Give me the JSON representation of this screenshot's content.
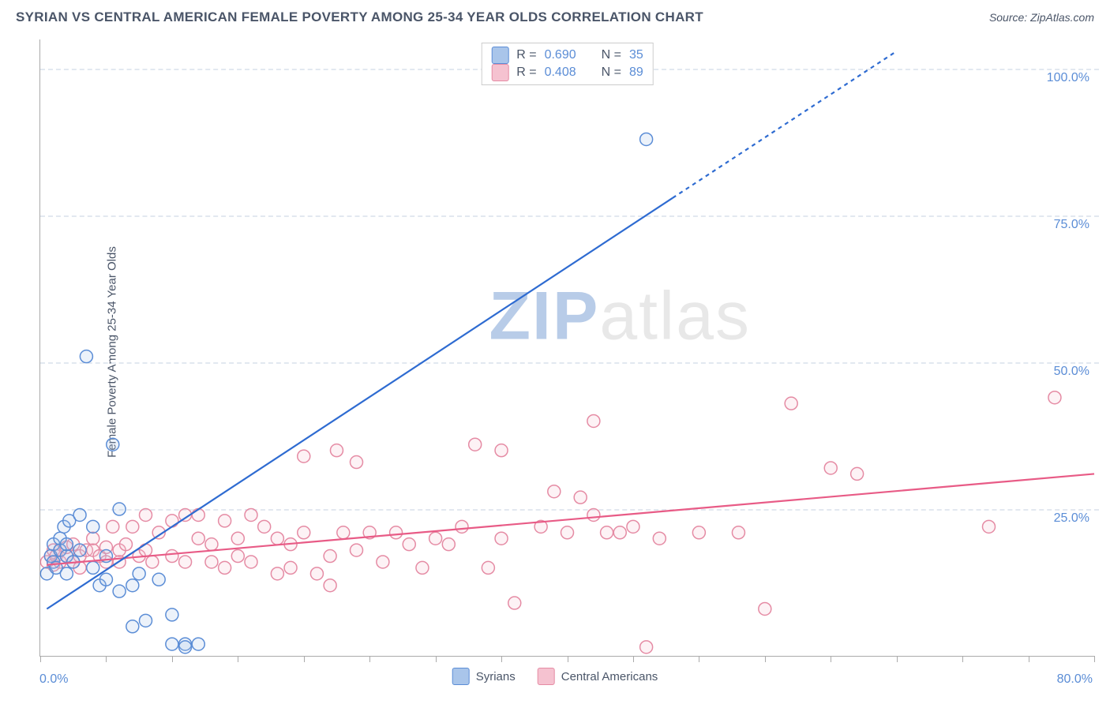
{
  "title": "SYRIAN VS CENTRAL AMERICAN FEMALE POVERTY AMONG 25-34 YEAR OLDS CORRELATION CHART",
  "source": "Source: ZipAtlas.com",
  "ylabel": "Female Poverty Among 25-34 Year Olds",
  "watermark_z": "ZIP",
  "watermark_rest": "atlas",
  "chart": {
    "type": "scatter",
    "xlim": [
      0,
      80
    ],
    "ylim": [
      0,
      105
    ],
    "x_ticklabels": [
      "0.0%",
      "80.0%"
    ],
    "y_ticks": [
      25,
      50,
      75,
      100
    ],
    "y_ticklabels": [
      "25.0%",
      "50.0%",
      "75.0%",
      "100.0%"
    ],
    "x_minor_tick_step": 5,
    "background_color": "#ffffff",
    "grid_color": "#e2e8f0",
    "axis_color": "#aaaaaa",
    "label_color_axis": "#5b8dd6",
    "label_color_text": "#4a5568",
    "marker_radius": 8,
    "marker_stroke_width": 1.5,
    "marker_fill_opacity": 0.22,
    "line_width": 2.2,
    "dash_pattern": "5,5"
  },
  "series": {
    "syrians": {
      "label": "Syrians",
      "color_stroke": "#5b8dd6",
      "color_fill": "#a9c5ea",
      "line_color": "#2e6bd1",
      "R": "0.690",
      "N": "35",
      "trend": {
        "x1": 0.5,
        "y1": 8,
        "x2": 48,
        "y2": 78,
        "ext_x2": 65,
        "ext_y2": 103
      },
      "points": [
        [
          0.5,
          14
        ],
        [
          0.8,
          17
        ],
        [
          1,
          16
        ],
        [
          1,
          19
        ],
        [
          1.2,
          15
        ],
        [
          1.5,
          18
        ],
        [
          1.5,
          20
        ],
        [
          1.8,
          22
        ],
        [
          2,
          17
        ],
        [
          2,
          14
        ],
        [
          2,
          19
        ],
        [
          2.2,
          23
        ],
        [
          2.5,
          16
        ],
        [
          3,
          18
        ],
        [
          3,
          24
        ],
        [
          3.5,
          51
        ],
        [
          4,
          15
        ],
        [
          4,
          22
        ],
        [
          4.5,
          12
        ],
        [
          5,
          17
        ],
        [
          5,
          13
        ],
        [
          5.5,
          36
        ],
        [
          6,
          11
        ],
        [
          6,
          25
        ],
        [
          7,
          12
        ],
        [
          7,
          5
        ],
        [
          7.5,
          14
        ],
        [
          8,
          6
        ],
        [
          9,
          13
        ],
        [
          10,
          7
        ],
        [
          10,
          2
        ],
        [
          11,
          2
        ],
        [
          11,
          1.5
        ],
        [
          12,
          2
        ],
        [
          46,
          88
        ]
      ]
    },
    "central_americans": {
      "label": "Central Americans",
      "color_stroke": "#e58ba4",
      "color_fill": "#f5c2d0",
      "line_color": "#e85b86",
      "R": "0.408",
      "N": "89",
      "trend": {
        "x1": 0.5,
        "y1": 15.5,
        "x2": 80,
        "y2": 31
      },
      "points": [
        [
          0.5,
          16
        ],
        [
          0.8,
          17
        ],
        [
          1,
          18
        ],
        [
          1,
          15.5
        ],
        [
          1.2,
          17
        ],
        [
          1.5,
          18
        ],
        [
          1.5,
          16
        ],
        [
          2,
          17
        ],
        [
          2,
          18.5
        ],
        [
          2.5,
          16
        ],
        [
          2.5,
          19
        ],
        [
          3,
          17
        ],
        [
          3,
          15
        ],
        [
          3.5,
          18
        ],
        [
          4,
          18
        ],
        [
          4,
          20
        ],
        [
          4.5,
          17
        ],
        [
          5,
          18.5
        ],
        [
          5,
          16
        ],
        [
          5.5,
          22
        ],
        [
          6,
          18
        ],
        [
          6,
          16
        ],
        [
          6.5,
          19
        ],
        [
          7,
          22
        ],
        [
          7.5,
          17
        ],
        [
          8,
          24
        ],
        [
          8,
          18
        ],
        [
          8.5,
          16
        ],
        [
          9,
          21
        ],
        [
          10,
          17
        ],
        [
          10,
          23
        ],
        [
          11,
          24
        ],
        [
          11,
          16
        ],
        [
          12,
          24
        ],
        [
          12,
          20
        ],
        [
          13,
          19
        ],
        [
          13,
          16
        ],
        [
          14,
          23
        ],
        [
          14,
          15
        ],
        [
          15,
          17
        ],
        [
          15,
          20
        ],
        [
          16,
          24
        ],
        [
          16,
          16
        ],
        [
          17,
          22
        ],
        [
          18,
          14
        ],
        [
          18,
          20
        ],
        [
          19,
          15
        ],
        [
          19,
          19
        ],
        [
          20,
          34
        ],
        [
          20,
          21
        ],
        [
          21,
          14
        ],
        [
          22,
          17
        ],
        [
          22,
          12
        ],
        [
          22.5,
          35
        ],
        [
          23,
          21
        ],
        [
          24,
          33
        ],
        [
          24,
          18
        ],
        [
          25,
          21
        ],
        [
          26,
          16
        ],
        [
          27,
          21
        ],
        [
          28,
          19
        ],
        [
          29,
          15
        ],
        [
          30,
          20
        ],
        [
          31,
          19
        ],
        [
          32,
          22
        ],
        [
          33,
          36
        ],
        [
          34,
          15
        ],
        [
          35,
          35
        ],
        [
          35,
          20
        ],
        [
          36,
          9
        ],
        [
          38,
          22
        ],
        [
          39,
          28
        ],
        [
          40,
          21
        ],
        [
          41,
          27
        ],
        [
          42,
          24
        ],
        [
          42,
          40
        ],
        [
          43,
          21
        ],
        [
          44,
          21
        ],
        [
          45,
          22
        ],
        [
          46,
          1.5
        ],
        [
          47,
          20
        ],
        [
          50,
          21
        ],
        [
          53,
          21
        ],
        [
          55,
          8
        ],
        [
          57,
          43
        ],
        [
          60,
          32
        ],
        [
          62,
          31
        ],
        [
          72,
          22
        ],
        [
          77,
          44
        ]
      ]
    }
  },
  "legend_stats": {
    "r_label": "R =",
    "n_label": "N ="
  }
}
